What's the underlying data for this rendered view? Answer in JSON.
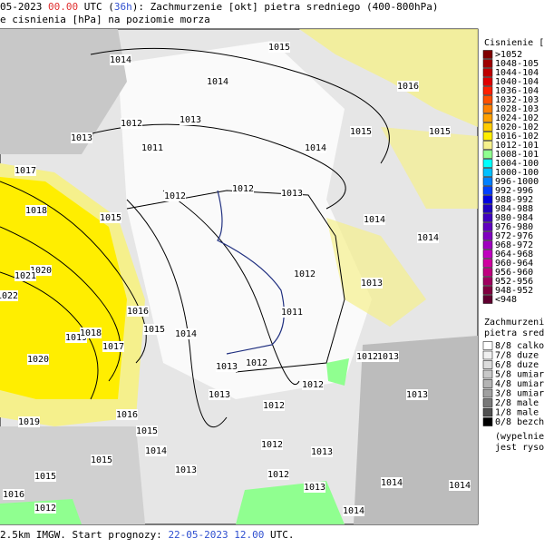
{
  "header": {
    "line1": [
      "05-2023 ",
      "00.00",
      " UTC (",
      "36h",
      "): Zachmurzenie [okt] pietra sredniego (400-800hPa)"
    ],
    "line2": "e cisnienia [hPa] na poziomie morza"
  },
  "footer": [
    "2.5km IMGW. Start prognozy: ",
    "22-05-2023 12.00",
    " UTC."
  ],
  "map": {
    "isobar_labels": [
      "1015",
      "1014",
      "1014",
      "1016",
      "1013",
      "1012",
      "1013",
      "1011",
      "1014",
      "1015",
      "1015",
      "1017",
      "1012",
      "1012",
      "1013",
      "1018",
      "1015",
      "1014",
      "1014",
      "1020",
      "1021",
      "1012",
      "1013",
      "1022",
      "1016",
      "1011",
      "1015",
      "1014",
      "1019",
      "1018",
      "1017",
      "1020",
      "1012",
      "1013",
      "1013",
      "1012",
      "1012",
      "1013",
      "1013",
      "1016",
      "1019",
      "1012",
      "1015",
      "1014",
      "1013",
      "1012",
      "1013",
      "1012",
      "1015",
      "1014",
      "1014",
      "1013",
      "1012",
      "1016",
      "1015",
      "1014"
    ]
  },
  "pressure_legend": {
    "title": "Cisnienie [hP",
    "items": [
      {
        "label": ">1052",
        "color": "#800000"
      },
      {
        "label": "1048-105",
        "color": "#a00000"
      },
      {
        "label": "1044-104",
        "color": "#c00000"
      },
      {
        "label": "1040-104",
        "color": "#e00000"
      },
      {
        "label": "1036-104",
        "color": "#ff2000"
      },
      {
        "label": "1032-103",
        "color": "#ff5000"
      },
      {
        "label": "1028-103",
        "color": "#ff8000"
      },
      {
        "label": "1024-102",
        "color": "#ffa000"
      },
      {
        "label": "1020-102",
        "color": "#ffcc00"
      },
      {
        "label": "1016-102",
        "color": "#ffee00"
      },
      {
        "label": "1012-101",
        "color": "#f5f08c"
      },
      {
        "label": "1008-101",
        "color": "#90ff90"
      },
      {
        "label": "1004-100",
        "color": "#00ffff"
      },
      {
        "label": "1000-100",
        "color": "#00c0ff"
      },
      {
        "label": "996-1000",
        "color": "#0080ff"
      },
      {
        "label": "992-996",
        "color": "#0040ff"
      },
      {
        "label": "988-992",
        "color": "#0000e0"
      },
      {
        "label": "984-988",
        "color": "#2000c0"
      },
      {
        "label": "980-984",
        "color": "#4000c0"
      },
      {
        "label": "976-980",
        "color": "#6000c0"
      },
      {
        "label": "972-976",
        "color": "#8000c0"
      },
      {
        "label": "968-972",
        "color": "#a000c0"
      },
      {
        "label": "964-968",
        "color": "#c000c0"
      },
      {
        "label": "960-964",
        "color": "#d000a0"
      },
      {
        "label": "956-960",
        "color": "#c00080"
      },
      {
        "label": "952-956",
        "color": "#a00060"
      },
      {
        "label": "948-952",
        "color": "#800040"
      },
      {
        "label": "<948",
        "color": "#600030"
      }
    ]
  },
  "cloud_legend": {
    "title": [
      "Zachmurzenie",
      "pietra sredni"
    ],
    "items": [
      {
        "label": "8/8 calkow",
        "color": "#ffffff"
      },
      {
        "label": "7/8 duze",
        "color": "#f0f0f0"
      },
      {
        "label": "6/8 duze",
        "color": "#dcdcdc"
      },
      {
        "label": "5/8 umiar",
        "color": "#c8c8c8"
      },
      {
        "label": "4/8 umiar",
        "color": "#b4b4b4"
      },
      {
        "label": "3/8 umiar",
        "color": "#a0a0a0"
      },
      {
        "label": "2/8 male",
        "color": "#787878"
      },
      {
        "label": "1/8 male",
        "color": "#505050"
      },
      {
        "label": "0/8 bezch",
        "color": "#000000"
      }
    ],
    "note": [
      "(wypelnieni",
      "jest rysowe"
    ]
  }
}
